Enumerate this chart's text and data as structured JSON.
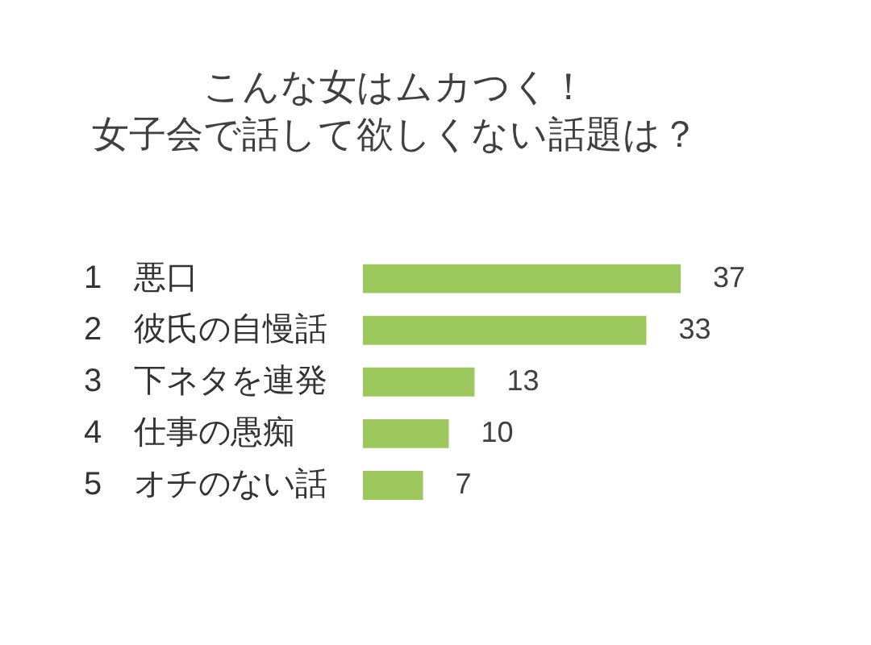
{
  "chart_data": {
    "type": "bar",
    "orientation": "horizontal",
    "title": "こんな女はムカつく！",
    "subtitle": "女子会で話して欲しくない話題は？",
    "categories": [
      "1　悪口",
      "2　彼氏の自慢話",
      "3　下ネタを連発",
      "4　仕事の愚痴",
      "5　オチのない話"
    ],
    "values": [
      37,
      33,
      13,
      10,
      7
    ],
    "color": "#9cc85e",
    "data_labels": true
  }
}
